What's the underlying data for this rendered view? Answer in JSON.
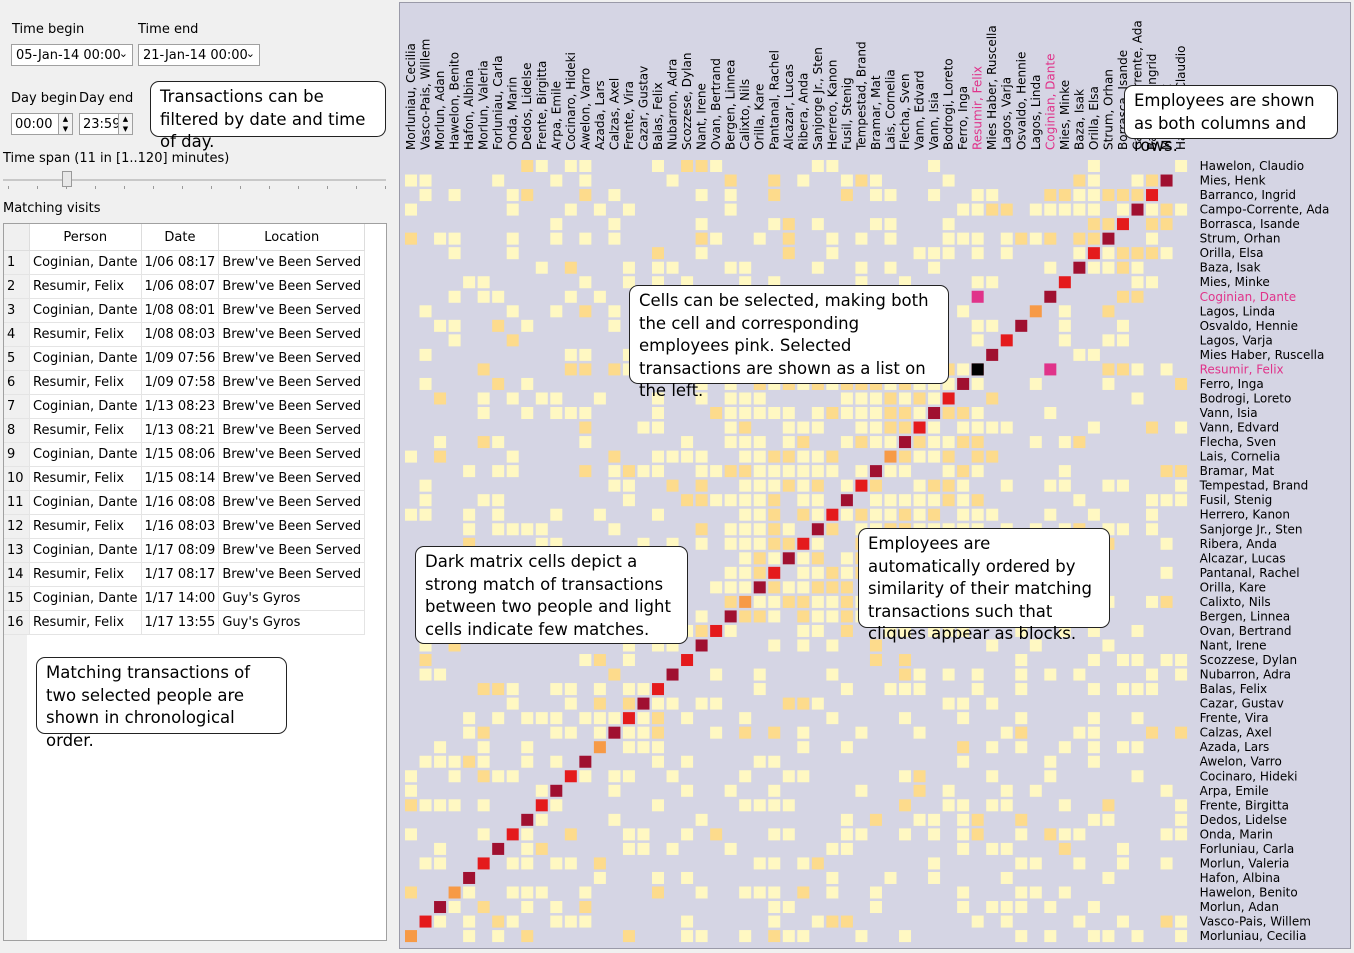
{
  "filters": {
    "time_begin_label": "Time begin",
    "time_end_label": "Time end",
    "time_begin_value": "05-Jan-14 00:00",
    "time_end_value": "21-Jan-14 00:00",
    "day_begin_label": "Day begin",
    "day_end_label": "Day end",
    "day_begin_value": "00:00",
    "day_end_value": "23:59",
    "time_span_label": "Time span (11 in [1..120] minutes)",
    "time_span_value": 11,
    "time_span_min": 1,
    "time_span_max": 120
  },
  "visits": {
    "title": "Matching visits",
    "columns": [
      "Person",
      "Date",
      "Location"
    ],
    "rows": [
      [
        "1",
        "Coginian, Dante",
        "1/06 08:17",
        "Brew've Been Served"
      ],
      [
        "2",
        "Resumir, Felix",
        "1/06 08:07",
        "Brew've Been Served"
      ],
      [
        "3",
        "Coginian, Dante",
        "1/08 08:01",
        "Brew've Been Served"
      ],
      [
        "4",
        "Resumir, Felix",
        "1/08 08:03",
        "Brew've Been Served"
      ],
      [
        "5",
        "Coginian, Dante",
        "1/09 07:56",
        "Brew've Been Served"
      ],
      [
        "6",
        "Resumir, Felix",
        "1/09 07:58",
        "Brew've Been Served"
      ],
      [
        "7",
        "Coginian, Dante",
        "1/13 08:23",
        "Brew've Been Served"
      ],
      [
        "8",
        "Resumir, Felix",
        "1/13 08:21",
        "Brew've Been Served"
      ],
      [
        "9",
        "Coginian, Dante",
        "1/15 08:06",
        "Brew've Been Served"
      ],
      [
        "10",
        "Resumir, Felix",
        "1/15 08:14",
        "Brew've Been Served"
      ],
      [
        "11",
        "Coginian, Dante",
        "1/16 08:08",
        "Brew've Been Served"
      ],
      [
        "12",
        "Resumir, Felix",
        "1/16 08:03",
        "Brew've Been Served"
      ],
      [
        "13",
        "Coginian, Dante",
        "1/17 08:09",
        "Brew've Been Served"
      ],
      [
        "14",
        "Resumir, Felix",
        "1/17 08:17",
        "Brew've Been Served"
      ],
      [
        "15",
        "Coginian, Dante",
        "1/17 14:00",
        "Guy's Gyros"
      ],
      [
        "16",
        "Resumir, Felix",
        "1/17 13:55",
        "Guy's Gyros"
      ]
    ]
  },
  "callouts": {
    "filter_note": "Transactions can be filtered by date and time of day.",
    "employees_note": "Employees are shown as both columns and rows.",
    "select_note": "Cells can be selected, making both the cell and corresponding employees pink. Selected transactions are shown as a list on the left.",
    "dark_note": "Dark matrix cells depict a strong match of transactions between two people and light cells indicate few matches.",
    "order_note": "Employees are automatically ordered by similarity of their matching transactions such that cliques appear as blocks.",
    "chrono_note": "Matching transactions of two selected people are shown in chronological order."
  },
  "matrix": {
    "employees": [
      "Hawelon, Claudio",
      "Mies, Henk",
      "Barranco, Ingrid",
      "Campo-Corrente, Ada",
      "Borrasca, Isande",
      "Strum, Orhan",
      "Orilla, Elsa",
      "Baza, Isak",
      "Mies, Minke",
      "Coginian, Dante",
      "Lagos, Linda",
      "Osvaldo, Hennie",
      "Lagos, Varja",
      "Mies Haber, Ruscella",
      "Resumir, Felix",
      "Ferro, Inga",
      "Bodrogi, Loreto",
      "Vann, Isia",
      "Vann, Edvard",
      "Flecha, Sven",
      "Lais, Cornelia",
      "Bramar, Mat",
      "Tempestad, Brand",
      "Fusil, Stenig",
      "Herrero, Kanon",
      "Sanjorge Jr., Sten",
      "Ribera, Anda",
      "Alcazar, Lucas",
      "Pantanal, Rachel",
      "Orilla, Kare",
      "Calixto, Nils",
      "Bergen, Linnea",
      "Ovan, Bertrand",
      "Nant, Irene",
      "Scozzese, Dylan",
      "Nubarron, Adra",
      "Balas, Felix",
      "Cazar, Gustav",
      "Frente, Vira",
      "Calzas, Axel",
      "Azada, Lars",
      "Awelon, Varro",
      "Cocinaro, Hideki",
      "Arpa, Emile",
      "Frente, Birgitta",
      "Dedos, Lidelse",
      "Onda, Marin",
      "Forluniau, Carla",
      "Morlun, Valeria",
      "Hafon, Albina",
      "Hawelon, Benito",
      "Morlun, Adan",
      "Vasco-Pais, Willem",
      "Morluniau, Cecilia"
    ],
    "selected": [
      "Coginian, Dante",
      "Resumir, Felix"
    ],
    "colors": {
      "background": "#d5d5e4",
      "selected": "#e0338a",
      "light": "#fff8c2",
      "mid": "#fddb8c",
      "orange": "#f79a46",
      "red": "#e41a1c",
      "dark": "#a01030",
      "black": "#000000"
    }
  }
}
